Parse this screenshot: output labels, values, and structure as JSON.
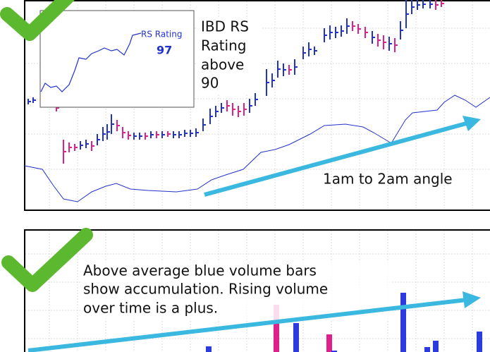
{
  "inset": {
    "label": "RS Rating",
    "value": "97"
  },
  "price_note": {
    "lines": [
      "IBD RS",
      "Rating",
      "above",
      "90"
    ]
  },
  "angle_note": "1am to 2am angle",
  "volume_note": {
    "lines": [
      "Above average blue volume bars",
      "show accumulation. Rising volume",
      "over time is a plus."
    ]
  }
}
